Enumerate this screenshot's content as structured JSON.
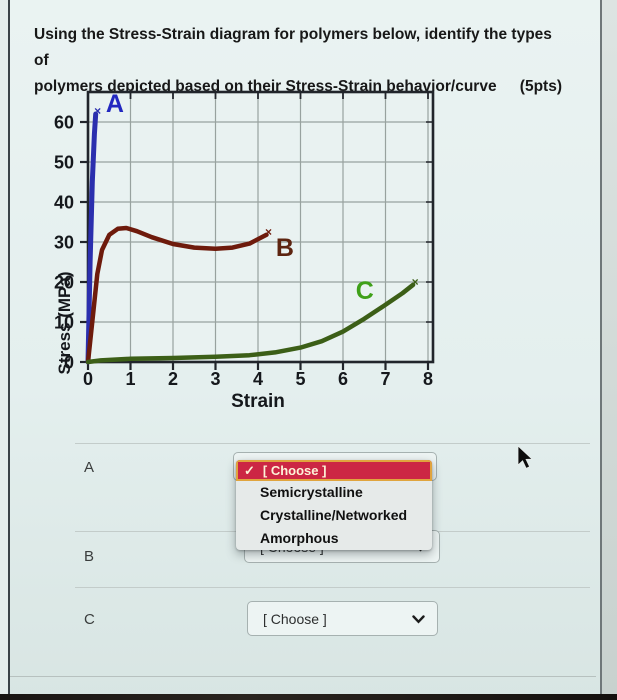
{
  "question": {
    "line1": "Using the Stress-Strain diagram for polymers below, identify the types of",
    "line2": "polymers depicted based on their Stress-Strain behavior/curve",
    "points": "(5pts)"
  },
  "chart_data": {
    "type": "line",
    "title": "",
    "xlabel": "Strain",
    "ylabel": "Stress (MPa)",
    "xlim": [
      0,
      8.1
    ],
    "ylim": [
      0,
      67.5
    ],
    "xticks": [
      0,
      1,
      2,
      3,
      4,
      5,
      6,
      7,
      8
    ],
    "yticks": [
      0,
      10,
      20,
      30,
      40,
      50,
      60
    ],
    "grid": true,
    "legend_position": "none",
    "series": [
      {
        "name": "A",
        "color": "#2b2fae",
        "label_color": "#2228c0",
        "width": 5,
        "end_marker": "x",
        "label_pos": {
          "x": 0.42,
          "y": 62.5
        },
        "points": [
          [
            0,
            0
          ],
          [
            0.05,
            25
          ],
          [
            0.1,
            45
          ],
          [
            0.15,
            57
          ],
          [
            0.18,
            62
          ]
        ]
      },
      {
        "name": "B",
        "color": "#6e1b0c",
        "label_color": "#5d2410",
        "width": 4.5,
        "end_marker": "x",
        "label_pos": {
          "x": 4.42,
          "y": 26.5
        },
        "points": [
          [
            0,
            0
          ],
          [
            0.12,
            12
          ],
          [
            0.22,
            22
          ],
          [
            0.33,
            28
          ],
          [
            0.5,
            31.8
          ],
          [
            0.7,
            33.3
          ],
          [
            0.9,
            33.5
          ],
          [
            1.15,
            32.7
          ],
          [
            1.5,
            31.2
          ],
          [
            2.0,
            29.5
          ],
          [
            2.5,
            28.6
          ],
          [
            3.0,
            28.3
          ],
          [
            3.4,
            28.6
          ],
          [
            3.8,
            29.6
          ],
          [
            4.2,
            31.8
          ]
        ]
      },
      {
        "name": "C",
        "color": "#3c5f17",
        "label_color": "#3fa019",
        "width": 4.5,
        "end_marker": "x",
        "label_pos": {
          "x": 6.3,
          "y": 15.8
        },
        "points": [
          [
            0,
            0
          ],
          [
            0.3,
            0.4
          ],
          [
            1,
            0.8
          ],
          [
            2,
            1.0
          ],
          [
            3,
            1.3
          ],
          [
            3.8,
            1.7
          ],
          [
            4.4,
            2.4
          ],
          [
            5.0,
            3.6
          ],
          [
            5.5,
            5.2
          ],
          [
            6.0,
            7.6
          ],
          [
            6.5,
            10.8
          ],
          [
            7.0,
            14.3
          ],
          [
            7.4,
            17.2
          ],
          [
            7.65,
            19.3
          ]
        ]
      }
    ]
  },
  "answers": {
    "choose_label": "[ Choose ]",
    "rows": [
      {
        "label": "A"
      },
      {
        "label": "B"
      },
      {
        "label": "C"
      }
    ]
  },
  "dropdown": {
    "selected": "[ Choose ]",
    "options": [
      "Semicrystalline",
      "Crystalline/Networked",
      "Amorphous"
    ],
    "highlight_bg": "#cc2644",
    "highlight_border": "#e0a43e",
    "highlight_text": "#fdf3d8"
  },
  "icons": {
    "check": "✓"
  }
}
